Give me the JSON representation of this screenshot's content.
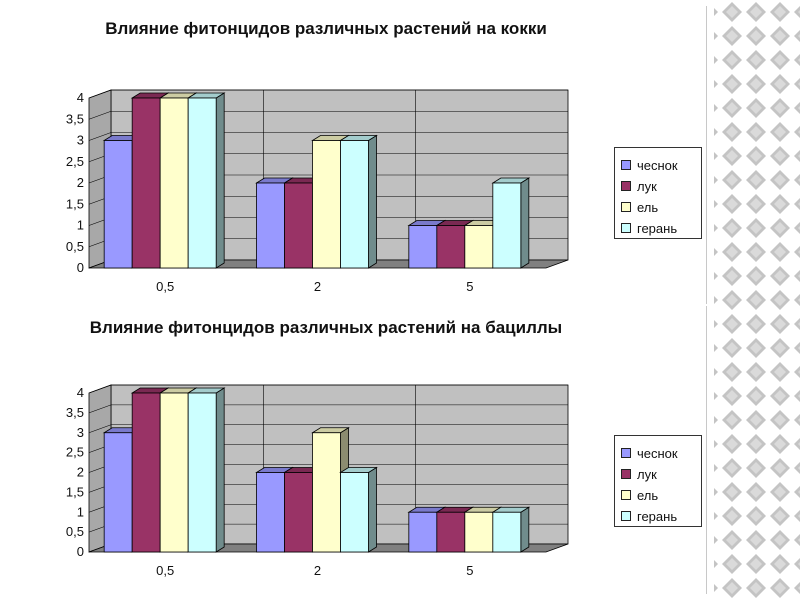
{
  "colors": {
    "series": [
      "#9999ff",
      "#993366",
      "#ffffcc",
      "#ccffff"
    ],
    "wall": "#c0c0c0",
    "floor": "#808080",
    "grid": "#000000",
    "slide_pattern": "#bdbdbd"
  },
  "chart_data": [
    {
      "type": "bar",
      "title": "Влияние фитонцидов различных растений на кокки",
      "categories": [
        "0,5",
        "2",
        "5"
      ],
      "series": [
        {
          "name": "чеснок",
          "values": [
            3,
            2,
            1
          ]
        },
        {
          "name": "лук",
          "values": [
            4,
            2,
            1
          ]
        },
        {
          "name": "ель",
          "values": [
            4,
            3,
            1
          ]
        },
        {
          "name": "герань",
          "values": [
            4,
            3,
            2
          ]
        }
      ],
      "ylim": [
        0,
        4
      ],
      "yticks": [
        "0",
        "0,5",
        "1",
        "1,5",
        "2",
        "2,5",
        "3",
        "3,5",
        "4"
      ],
      "grid": true,
      "legend": "right",
      "style": "3d-clustered"
    },
    {
      "type": "bar",
      "title": "Влияние фитонцидов различных растений на бациллы",
      "categories": [
        "0,5",
        "2",
        "5"
      ],
      "series": [
        {
          "name": "чеснок",
          "values": [
            3,
            2,
            1
          ]
        },
        {
          "name": "лук",
          "values": [
            4,
            2,
            1
          ]
        },
        {
          "name": "ель",
          "values": [
            4,
            3,
            1
          ]
        },
        {
          "name": "герань",
          "values": [
            4,
            2,
            1
          ]
        }
      ],
      "ylim": [
        0,
        4
      ],
      "yticks": [
        "0",
        "0,5",
        "1",
        "1,5",
        "2",
        "2,5",
        "3",
        "3,5",
        "4"
      ],
      "grid": true,
      "legend": "right",
      "style": "3d-clustered"
    }
  ]
}
